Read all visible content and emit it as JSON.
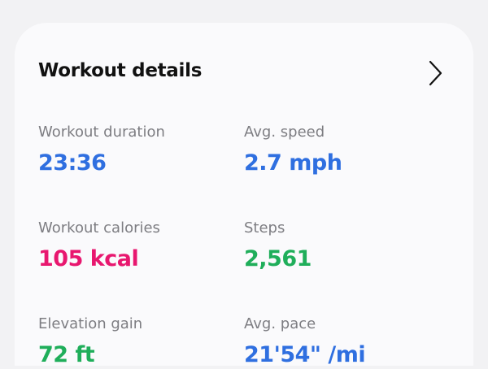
{
  "header": {
    "title": "Workout details"
  },
  "stats": [
    {
      "label": "Workout duration",
      "value": "23:36",
      "color": "#2f6fe0"
    },
    {
      "label": "Avg. speed",
      "value": "2.7 mph",
      "color": "#2f6fe0"
    },
    {
      "label": "Workout calories",
      "value": "105 kcal",
      "color": "#e8176f"
    },
    {
      "label": "Steps",
      "value": "2,561",
      "color": "#1fae5a"
    },
    {
      "label": "Elevation gain",
      "value": "72 ft",
      "color": "#1fae5a"
    },
    {
      "label": "Avg. pace",
      "value": "21'54\" /mi",
      "color": "#2f6fe0"
    }
  ]
}
